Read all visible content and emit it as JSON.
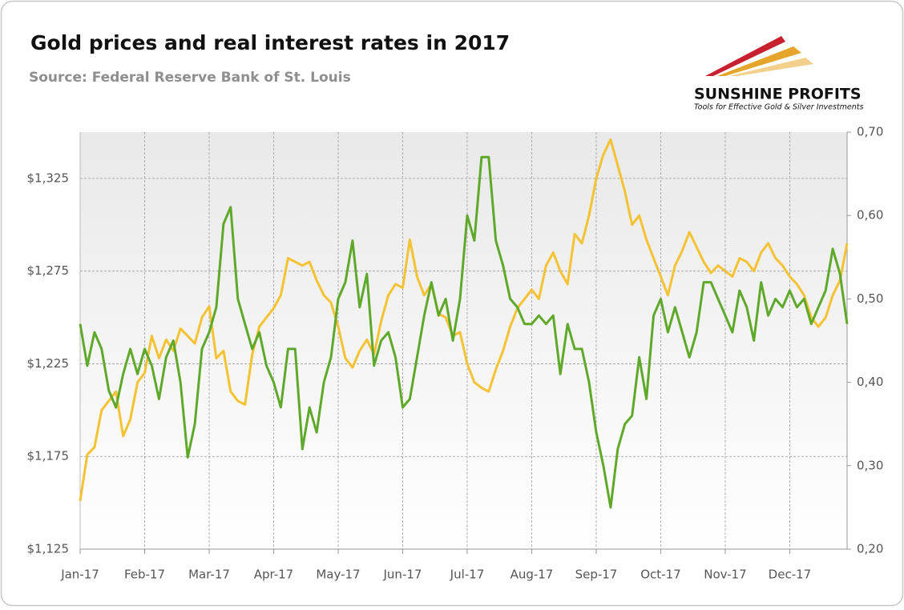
{
  "logo": {
    "name": "SUNSHINE PROFITS",
    "tagline": "Tools for Effective Gold & Silver Investments"
  },
  "chart_data": {
    "type": "line",
    "title": "Gold prices and real interest rates in 2017",
    "subtitle": "Source: Federal Reserve Bank of St. Louis",
    "categories": [
      "Jan-17",
      null,
      null,
      null,
      null,
      null,
      null,
      null,
      null,
      "Feb-17",
      null,
      null,
      null,
      null,
      null,
      null,
      null,
      null,
      "Mar-17",
      null,
      null,
      null,
      null,
      null,
      null,
      null,
      null,
      "Apr-17",
      null,
      null,
      null,
      null,
      null,
      null,
      null,
      null,
      "May-17",
      null,
      null,
      null,
      null,
      null,
      null,
      null,
      null,
      "Jun-17",
      null,
      null,
      null,
      null,
      null,
      null,
      null,
      null,
      "Jul-17",
      null,
      null,
      null,
      null,
      null,
      null,
      null,
      null,
      "Aug-17",
      null,
      null,
      null,
      null,
      null,
      null,
      null,
      null,
      "Sep-17",
      null,
      null,
      null,
      null,
      null,
      null,
      null,
      null,
      "Oct-17",
      null,
      null,
      null,
      null,
      null,
      null,
      null,
      null,
      "Nov-17",
      null,
      null,
      null,
      null,
      null,
      null,
      null,
      null,
      "Dec-17",
      null,
      null,
      null,
      null,
      null,
      null,
      null,
      null
    ],
    "series": [
      {
        "color": "#f4c232",
        "axis": "y",
        "values": [
          1151,
          1176,
          1180,
          1200,
          1205,
          1210,
          1186,
          1195,
          1215,
          1220,
          1240,
          1228,
          1238,
          1232,
          1244,
          1240,
          1236,
          1250,
          1256,
          1228,
          1232,
          1210,
          1205,
          1203,
          1230,
          1245,
          1250,
          1255,
          1262,
          1282,
          1280,
          1278,
          1280,
          1270,
          1262,
          1258,
          1245,
          1228,
          1223,
          1232,
          1238,
          1230,
          1248,
          1262,
          1268,
          1266,
          1292,
          1272,
          1262,
          1268,
          1252,
          1250,
          1240,
          1242,
          1225,
          1215,
          1212,
          1210,
          1222,
          1232,
          1245,
          1255,
          1260,
          1265,
          1260,
          1278,
          1285,
          1275,
          1268,
          1295,
          1290,
          1305,
          1325,
          1338,
          1346,
          1332,
          1318,
          1300,
          1305,
          1292,
          1282,
          1272,
          1262,
          1278,
          1286,
          1296,
          1288,
          1280,
          1274,
          1278,
          1275,
          1272,
          1282,
          1280,
          1275,
          1285,
          1290,
          1282,
          1278,
          1272,
          1268,
          1262,
          1250,
          1245,
          1250,
          1262,
          1270,
          1290
        ]
      },
      {
        "color": "#5ea82a",
        "axis": "y2",
        "values": [
          0.47,
          0.42,
          0.46,
          0.44,
          0.39,
          0.37,
          0.41,
          0.44,
          0.41,
          0.44,
          0.42,
          0.38,
          0.43,
          0.45,
          0.4,
          0.31,
          0.35,
          0.44,
          0.46,
          0.49,
          0.59,
          0.61,
          0.5,
          0.47,
          0.44,
          0.46,
          0.42,
          0.4,
          0.37,
          0.44,
          0.44,
          0.32,
          0.37,
          0.34,
          0.4,
          0.43,
          0.5,
          0.52,
          0.57,
          0.49,
          0.53,
          0.42,
          0.45,
          0.46,
          0.43,
          0.37,
          0.38,
          0.43,
          0.48,
          0.52,
          0.48,
          0.5,
          0.45,
          0.5,
          0.6,
          0.57,
          0.67,
          0.67,
          0.57,
          0.54,
          0.5,
          0.49,
          0.47,
          0.47,
          0.48,
          0.47,
          0.48,
          0.41,
          0.47,
          0.44,
          0.44,
          0.4,
          0.34,
          0.3,
          0.25,
          0.32,
          0.35,
          0.36,
          0.43,
          0.38,
          0.48,
          0.5,
          0.46,
          0.49,
          0.46,
          0.43,
          0.46,
          0.52,
          0.52,
          0.5,
          0.48,
          0.46,
          0.51,
          0.49,
          0.45,
          0.52,
          0.48,
          0.5,
          0.49,
          0.51,
          0.49,
          0.5,
          0.47,
          0.49,
          0.51,
          0.56,
          0.53,
          0.47
        ]
      }
    ],
    "ylim": [
      1125,
      1350
    ],
    "yticks": [
      {
        "value": 1125,
        "label": "$1,125"
      },
      {
        "value": 1175,
        "label": "$1,175"
      },
      {
        "value": 1225,
        "label": "$1,225"
      },
      {
        "value": 1275,
        "label": "$1,275"
      },
      {
        "value": 1325,
        "label": "$1,325"
      }
    ],
    "y2lim": [
      0.2,
      0.7
    ],
    "y2ticks": [
      {
        "value": 0.2,
        "label": "0,20"
      },
      {
        "value": 0.3,
        "label": "0,30"
      },
      {
        "value": 0.4,
        "label": "0,40"
      },
      {
        "value": 0.5,
        "label": "0,50"
      },
      {
        "value": 0.6,
        "label": "0,60"
      },
      {
        "value": 0.7,
        "label": "0,70"
      }
    ],
    "grid": true
  }
}
